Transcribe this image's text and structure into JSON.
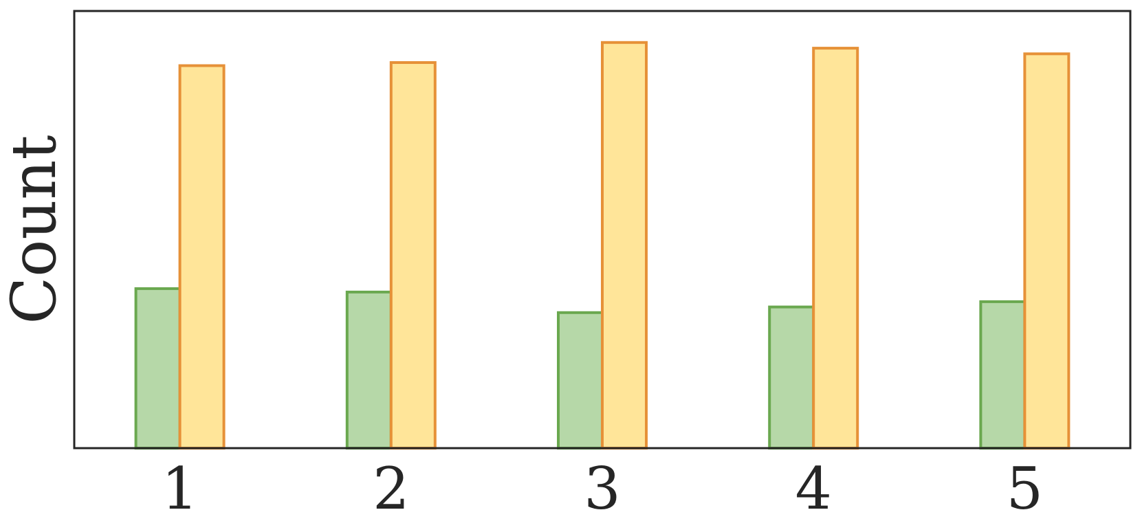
{
  "chart_data": {
    "type": "bar",
    "categories": [
      "1",
      "2",
      "3",
      "4",
      "5"
    ],
    "xlabel": "",
    "ylabel": "Count",
    "title": "",
    "ylim": [
      0,
      100
    ],
    "y_ticks_shown": false,
    "grid": false,
    "legend": "none",
    "series": [
      {
        "values": [
          36.5,
          35.7,
          31.0,
          32.3,
          33.5
        ],
        "fill": "#b6d8a8",
        "stroke": "#6aa84f"
      },
      {
        "values": [
          87.5,
          88.2,
          92.8,
          91.5,
          90.2
        ],
        "fill": "#ffe599",
        "stroke": "#e69138"
      }
    ]
  }
}
